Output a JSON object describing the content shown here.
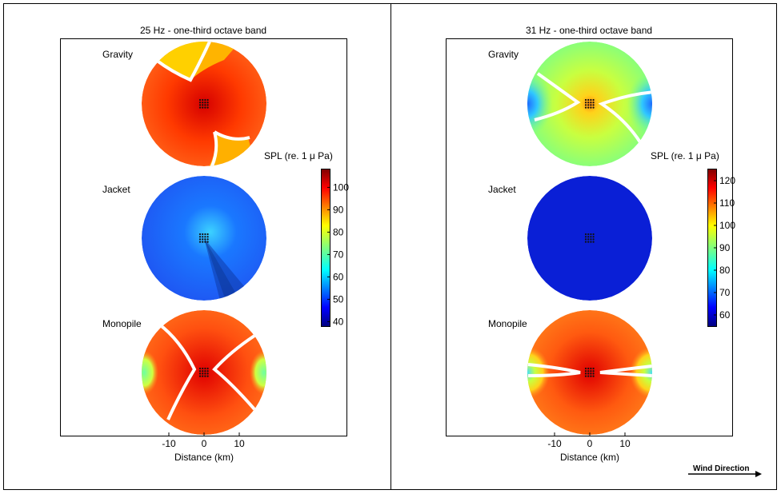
{
  "panels": [
    {
      "title": "25 Hz - one-third octave band",
      "labels": [
        "Gravity",
        "Jacket",
        "Monopile"
      ],
      "xlabel": "Distance (km)",
      "xticks": [
        "-10",
        "0",
        "10"
      ],
      "colorbar_label": "SPL (re. 1 μ Pa)",
      "colorbar_ticks": [
        "100",
        "90",
        "80",
        "70",
        "60",
        "50",
        "40"
      ]
    },
    {
      "title": "31 Hz - one-third octave band",
      "labels": [
        "Gravity",
        "Jacket",
        "Monopile"
      ],
      "xlabel": "Distance (km)",
      "xticks": [
        "-10",
        "0",
        "10"
      ],
      "colorbar_label": "SPL (re. 1 μ Pa)",
      "colorbar_ticks": [
        "120",
        "110",
        "100",
        "90",
        "80",
        "70",
        "60"
      ]
    }
  ],
  "wind_direction": "Wind Direction",
  "chart_data": [
    {
      "type": "heatmap",
      "title": "25 Hz - one-third octave band",
      "xlabel": "Distance (km)",
      "x_ticks": [
        -10,
        0,
        10
      ],
      "series": [
        {
          "name": "Gravity",
          "spl_peak": 102,
          "spl_min": 88
        },
        {
          "name": "Jacket",
          "spl_peak": 62,
          "spl_min": 45
        },
        {
          "name": "Monopile",
          "spl_peak": 102,
          "spl_min": 78
        }
      ],
      "colorbar": {
        "label": "SPL (re. 1 μ Pa)",
        "range": [
          38,
          108
        ],
        "ticks": [
          40,
          50,
          60,
          70,
          80,
          90,
          100
        ]
      }
    },
    {
      "type": "heatmap",
      "title": "31 Hz - one-third octave band",
      "xlabel": "Distance (km)",
      "x_ticks": [
        -10,
        0,
        10
      ],
      "series": [
        {
          "name": "Gravity",
          "spl_peak": 100,
          "spl_min": 78
        },
        {
          "name": "Jacket",
          "spl_peak": 60,
          "spl_min": 58
        },
        {
          "name": "Monopile",
          "spl_peak": 117,
          "spl_min": 88
        }
      ],
      "colorbar": {
        "label": "SPL (re. 1 μ Pa)",
        "range": [
          55,
          125
        ],
        "ticks": [
          60,
          70,
          80,
          90,
          100,
          110,
          120
        ]
      }
    }
  ]
}
